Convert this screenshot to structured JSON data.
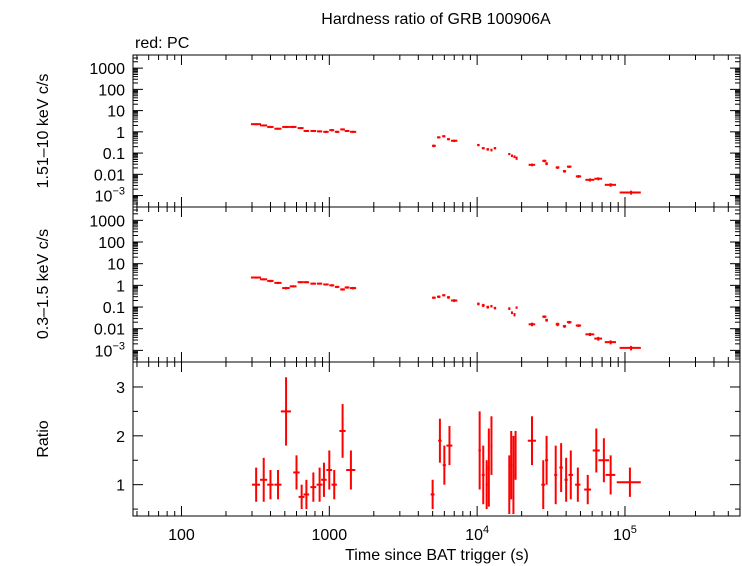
{
  "chart_data": {
    "type": "scatter",
    "title": "Hardness ratio of GRB 100906A",
    "subtitle": "red: PC",
    "xlabel": "Time since BAT trigger (s)",
    "x_scale": "log",
    "xlim": [
      47,
      600000
    ],
    "x_ticks": [
      {
        "value": 100,
        "base": "100",
        "exp": ""
      },
      {
        "value": 1000,
        "base": "1000",
        "exp": ""
      },
      {
        "value": 10000,
        "base": "10",
        "exp": "4"
      },
      {
        "value": 100000,
        "base": "10",
        "exp": "5"
      }
    ],
    "color": "#ff0000",
    "panels": [
      {
        "id": "hard",
        "ylabel": "1.51–10 keV c/s",
        "y_scale": "log",
        "ylim": [
          0.0004,
          3000
        ],
        "y_ticks": [
          {
            "value": 1000,
            "base": "1000",
            "exp": ""
          },
          {
            "value": 100,
            "base": "100",
            "exp": ""
          },
          {
            "value": 10,
            "base": "10",
            "exp": ""
          },
          {
            "value": 1,
            "base": "1",
            "exp": ""
          },
          {
            "value": 0.1,
            "base": "0.1",
            "exp": ""
          },
          {
            "value": 0.01,
            "base": "0.01",
            "exp": ""
          },
          {
            "value": 0.001,
            "base": "10",
            "exp": "−3"
          }
        ],
        "points": [
          [
            320,
            2.3,
            25,
            0.25
          ],
          [
            360,
            2.0,
            20,
            0.2
          ],
          [
            400,
            1.7,
            20,
            0.2
          ],
          [
            450,
            1.4,
            25,
            0.15
          ],
          [
            510,
            1.7,
            30,
            0.2
          ],
          [
            570,
            1.7,
            30,
            0.2
          ],
          [
            640,
            1.5,
            30,
            0.15
          ],
          [
            700,
            1.1,
            30,
            0.12
          ],
          [
            780,
            1.1,
            35,
            0.12
          ],
          [
            860,
            1.05,
            35,
            0.12
          ],
          [
            950,
            1.0,
            40,
            0.12
          ],
          [
            1040,
            1.2,
            40,
            0.15
          ],
          [
            1130,
            1.0,
            40,
            0.12
          ],
          [
            1230,
            1.3,
            45,
            0.15
          ],
          [
            1320,
            1.1,
            50,
            0.12
          ],
          [
            1450,
            1.0,
            70,
            0.12
          ],
          [
            5100,
            0.22,
            150,
            0.03
          ],
          [
            5500,
            0.55,
            150,
            0.06
          ],
          [
            5950,
            0.62,
            150,
            0.07
          ],
          [
            6400,
            0.45,
            150,
            0.05
          ],
          [
            7000,
            0.38,
            350,
            0.05
          ],
          [
            10200,
            0.24,
            200,
            0.03
          ],
          [
            11000,
            0.17,
            250,
            0.02
          ],
          [
            11800,
            0.15,
            250,
            0.02
          ],
          [
            12500,
            0.14,
            200,
            0.02
          ],
          [
            13200,
            0.17,
            250,
            0.02
          ],
          [
            16500,
            0.09,
            250,
            0.01
          ],
          [
            17200,
            0.075,
            250,
            0.01
          ],
          [
            17900,
            0.068,
            250,
            0.01
          ],
          [
            18500,
            0.058,
            250,
            0.01
          ],
          [
            23500,
            0.028,
            1200,
            0.004
          ],
          [
            28500,
            0.043,
            900,
            0.006
          ],
          [
            29500,
            0.032,
            600,
            0.005
          ],
          [
            35000,
            0.021,
            1000,
            0.003
          ],
          [
            39000,
            0.014,
            1000,
            0.002
          ],
          [
            42000,
            0.023,
            1500,
            0.003
          ],
          [
            48500,
            0.008,
            2000,
            0.0012
          ],
          [
            58000,
            0.0055,
            4000,
            0.0009
          ],
          [
            66000,
            0.0062,
            4000,
            0.001
          ],
          [
            80000,
            0.0032,
            7000,
            0.0006
          ],
          [
            110000,
            0.0014,
            18000,
            0.0003
          ]
        ]
      },
      {
        "id": "soft",
        "ylabel": "0.3–1.5 keV c/s",
        "y_scale": "log",
        "ylim": [
          0.0004,
          3000
        ],
        "y_ticks": [
          {
            "value": 1000,
            "base": "1000",
            "exp": ""
          },
          {
            "value": 100,
            "base": "100",
            "exp": ""
          },
          {
            "value": 10,
            "base": "10",
            "exp": ""
          },
          {
            "value": 1,
            "base": "1",
            "exp": ""
          },
          {
            "value": 0.1,
            "base": "0.1",
            "exp": ""
          },
          {
            "value": 0.01,
            "base": "0.01",
            "exp": ""
          },
          {
            "value": 0.001,
            "base": "10",
            "exp": "−3"
          }
        ],
        "points": [
          [
            320,
            2.3,
            25,
            0.25
          ],
          [
            360,
            1.9,
            20,
            0.2
          ],
          [
            400,
            1.6,
            20,
            0.2
          ],
          [
            450,
            1.3,
            25,
            0.15
          ],
          [
            510,
            0.75,
            30,
            0.1
          ],
          [
            570,
            0.9,
            30,
            0.1
          ],
          [
            640,
            1.4,
            30,
            0.15
          ],
          [
            700,
            1.4,
            30,
            0.15
          ],
          [
            780,
            1.2,
            35,
            0.12
          ],
          [
            860,
            1.2,
            35,
            0.12
          ],
          [
            950,
            1.1,
            40,
            0.12
          ],
          [
            1040,
            1.0,
            40,
            0.12
          ],
          [
            1130,
            0.85,
            40,
            0.1
          ],
          [
            1230,
            0.65,
            45,
            0.08
          ],
          [
            1320,
            0.8,
            50,
            0.1
          ],
          [
            1450,
            0.75,
            70,
            0.1
          ],
          [
            5100,
            0.27,
            150,
            0.03
          ],
          [
            5500,
            0.3,
            150,
            0.04
          ],
          [
            5950,
            0.35,
            150,
            0.04
          ],
          [
            6400,
            0.28,
            150,
            0.04
          ],
          [
            7000,
            0.2,
            350,
            0.03
          ],
          [
            10200,
            0.14,
            200,
            0.02
          ],
          [
            11000,
            0.12,
            250,
            0.02
          ],
          [
            11800,
            0.1,
            250,
            0.015
          ],
          [
            12500,
            0.11,
            200,
            0.015
          ],
          [
            13200,
            0.09,
            250,
            0.012
          ],
          [
            16500,
            0.085,
            250,
            0.012
          ],
          [
            17200,
            0.055,
            250,
            0.008
          ],
          [
            17900,
            0.045,
            250,
            0.008
          ],
          [
            18500,
            0.095,
            250,
            0.012
          ],
          [
            23500,
            0.016,
            1200,
            0.003
          ],
          [
            28500,
            0.036,
            900,
            0.005
          ],
          [
            29500,
            0.025,
            600,
            0.004
          ],
          [
            35000,
            0.016,
            1000,
            0.003
          ],
          [
            39000,
            0.013,
            1000,
            0.002
          ],
          [
            42000,
            0.02,
            1500,
            0.003
          ],
          [
            48500,
            0.014,
            2000,
            0.002
          ],
          [
            58000,
            0.0055,
            4000,
            0.0009
          ],
          [
            66000,
            0.0035,
            4000,
            0.0007
          ],
          [
            80000,
            0.0024,
            7000,
            0.0005
          ],
          [
            110000,
            0.0013,
            18000,
            0.0003
          ]
        ]
      },
      {
        "id": "ratio",
        "ylabel": "Ratio",
        "y_scale": "linear",
        "ylim": [
          0.42,
          3.45
        ],
        "y_ticks": [
          {
            "value": 1,
            "base": "1",
            "exp": ""
          },
          {
            "value": 2,
            "base": "2",
            "exp": ""
          },
          {
            "value": 3,
            "base": "3",
            "exp": ""
          }
        ],
        "points": [
          [
            320,
            1.0,
            20,
            0.35
          ],
          [
            360,
            1.1,
            20,
            0.45
          ],
          [
            400,
            1.0,
            20,
            0.3
          ],
          [
            450,
            1.0,
            25,
            0.3
          ],
          [
            510,
            2.5,
            40,
            0.7
          ],
          [
            600,
            1.25,
            30,
            0.35
          ],
          [
            650,
            0.75,
            30,
            0.25
          ],
          [
            700,
            0.8,
            30,
            0.3
          ],
          [
            780,
            0.95,
            35,
            0.3
          ],
          [
            860,
            1.0,
            40,
            0.35
          ],
          [
            920,
            1.1,
            40,
            0.35
          ],
          [
            1000,
            1.3,
            45,
            0.4
          ],
          [
            1080,
            1.0,
            45,
            0.3
          ],
          [
            1230,
            2.1,
            60,
            0.55
          ],
          [
            1400,
            1.3,
            100,
            0.4
          ],
          [
            5000,
            0.8,
            150,
            0.3
          ],
          [
            5600,
            1.9,
            150,
            0.45
          ],
          [
            6000,
            1.4,
            150,
            0.4
          ],
          [
            6500,
            1.8,
            300,
            0.4
          ],
          [
            10400,
            1.7,
            200,
            0.8
          ],
          [
            11000,
            1.2,
            250,
            0.6
          ],
          [
            11600,
            1.0,
            200,
            0.5
          ],
          [
            12000,
            1.35,
            200,
            0.8
          ],
          [
            12500,
            1.8,
            200,
            0.6
          ],
          [
            16500,
            1.0,
            200,
            0.6
          ],
          [
            17000,
            1.4,
            250,
            0.7
          ],
          [
            17600,
            1.2,
            250,
            0.8
          ],
          [
            18200,
            1.6,
            250,
            0.5
          ],
          [
            23500,
            1.9,
            1500,
            0.5
          ],
          [
            28000,
            1.0,
            800,
            0.5
          ],
          [
            29500,
            1.5,
            700,
            0.5
          ],
          [
            34000,
            1.2,
            800,
            0.6
          ],
          [
            37000,
            1.35,
            1000,
            0.5
          ],
          [
            40000,
            1.1,
            1000,
            0.45
          ],
          [
            43000,
            1.2,
            1500,
            0.5
          ],
          [
            48000,
            1.0,
            2000,
            0.35
          ],
          [
            56000,
            0.9,
            3000,
            0.3
          ],
          [
            64000,
            1.7,
            3500,
            0.45
          ],
          [
            72000,
            1.5,
            6000,
            0.45
          ],
          [
            80000,
            1.2,
            6000,
            0.4
          ],
          [
            108000,
            1.05,
            20000,
            0.3
          ]
        ]
      }
    ]
  }
}
